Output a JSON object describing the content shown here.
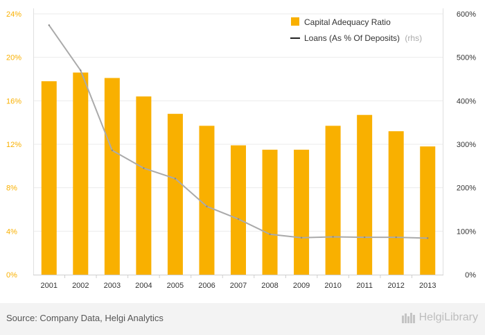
{
  "chart_data": {
    "type": "bar+line",
    "categories": [
      "2001",
      "2002",
      "2003",
      "2004",
      "2005",
      "2006",
      "2007",
      "2008",
      "2009",
      "2010",
      "2011",
      "2012",
      "2013"
    ],
    "series": [
      {
        "name": "Capital Adequacy Ratio",
        "type": "bar",
        "axis": "left",
        "color": "#f9b000",
        "values": [
          17.8,
          18.6,
          18.1,
          16.4,
          14.8,
          13.7,
          11.9,
          11.5,
          11.5,
          13.7,
          14.7,
          13.2,
          11.8
        ]
      },
      {
        "name": "Loans (As % Of Deposits)",
        "suffix": "(rhs)",
        "type": "line",
        "axis": "right",
        "color": "#aaaaaa",
        "values": [
          574,
          470,
          286,
          245,
          221,
          157,
          128,
          93,
          85,
          87,
          86,
          86,
          84
        ]
      }
    ],
    "left_axis": {
      "ticks": [
        "0%",
        "4%",
        "8%",
        "12%",
        "16%",
        "20%",
        "24%"
      ],
      "range": [
        0,
        24
      ],
      "tick_color": "#f9b000"
    },
    "right_axis": {
      "ticks": [
        "0%",
        "100%",
        "200%",
        "300%",
        "400%",
        "500%",
        "600%"
      ],
      "range": [
        0,
        600
      ]
    },
    "legend_placement": "top-right"
  },
  "legend": {
    "bar_label": "Capital Adequacy Ratio",
    "line_label": "Loans (As % Of Deposits)",
    "line_suffix": "(rhs)"
  },
  "footer": {
    "source": "Source: Company Data, Helgi Analytics",
    "brand": "HelgiLibrary"
  }
}
